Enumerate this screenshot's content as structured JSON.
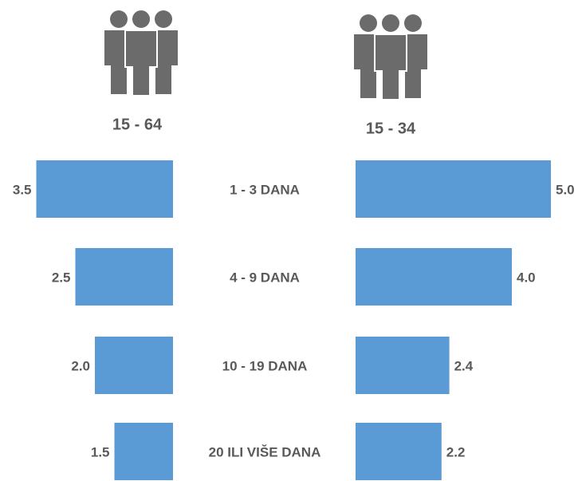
{
  "chart_data": [
    {
      "type": "bar",
      "title": "15 - 64",
      "color": "#5b9bd5",
      "categories": [
        "1 - 3 DANA",
        "4 - 9 DANA",
        "10 - 19 DANA",
        "20 ILI VIŠE DANA"
      ],
      "values": [
        3.5,
        2.5,
        2.0,
        1.5
      ],
      "value_labels": [
        "3.5",
        "2.5",
        "2.0",
        "1.5"
      ]
    },
    {
      "type": "bar",
      "title": "15 - 34",
      "color": "#5b9bd5",
      "values": [
        5.0,
        4.0,
        2.4,
        2.2
      ],
      "value_labels": [
        "5.0",
        "4.0",
        "2.4",
        "2.2"
      ]
    }
  ]
}
